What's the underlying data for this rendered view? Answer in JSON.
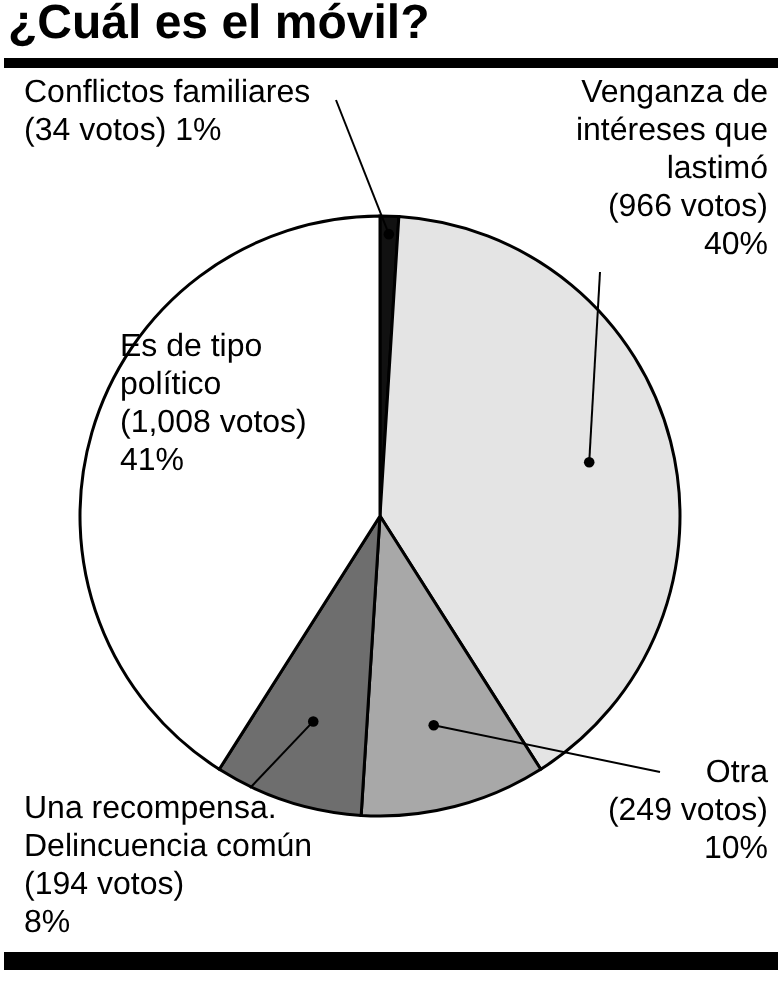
{
  "chart_data": {
    "type": "pie",
    "title": "¿Cuál es el móvil?",
    "categories": [
      "Conflictos familiares",
      "Venganza de intéreses que lastimó",
      "Otra",
      "Una recompensa. Delincuencia común",
      "Es de tipo político"
    ],
    "values": [
      1,
      40,
      10,
      8,
      41
    ],
    "colors": [
      "#111111",
      "#e4e4e4",
      "#a8a8a8",
      "#6e6e6e",
      "#ffffff"
    ],
    "value_labels": [
      "(34 votos) 1%",
      "(966 votos) 40%",
      "(249 votos) 10%",
      "(194 votos) 8%",
      "(1,008 votos) 41%"
    ]
  }
}
